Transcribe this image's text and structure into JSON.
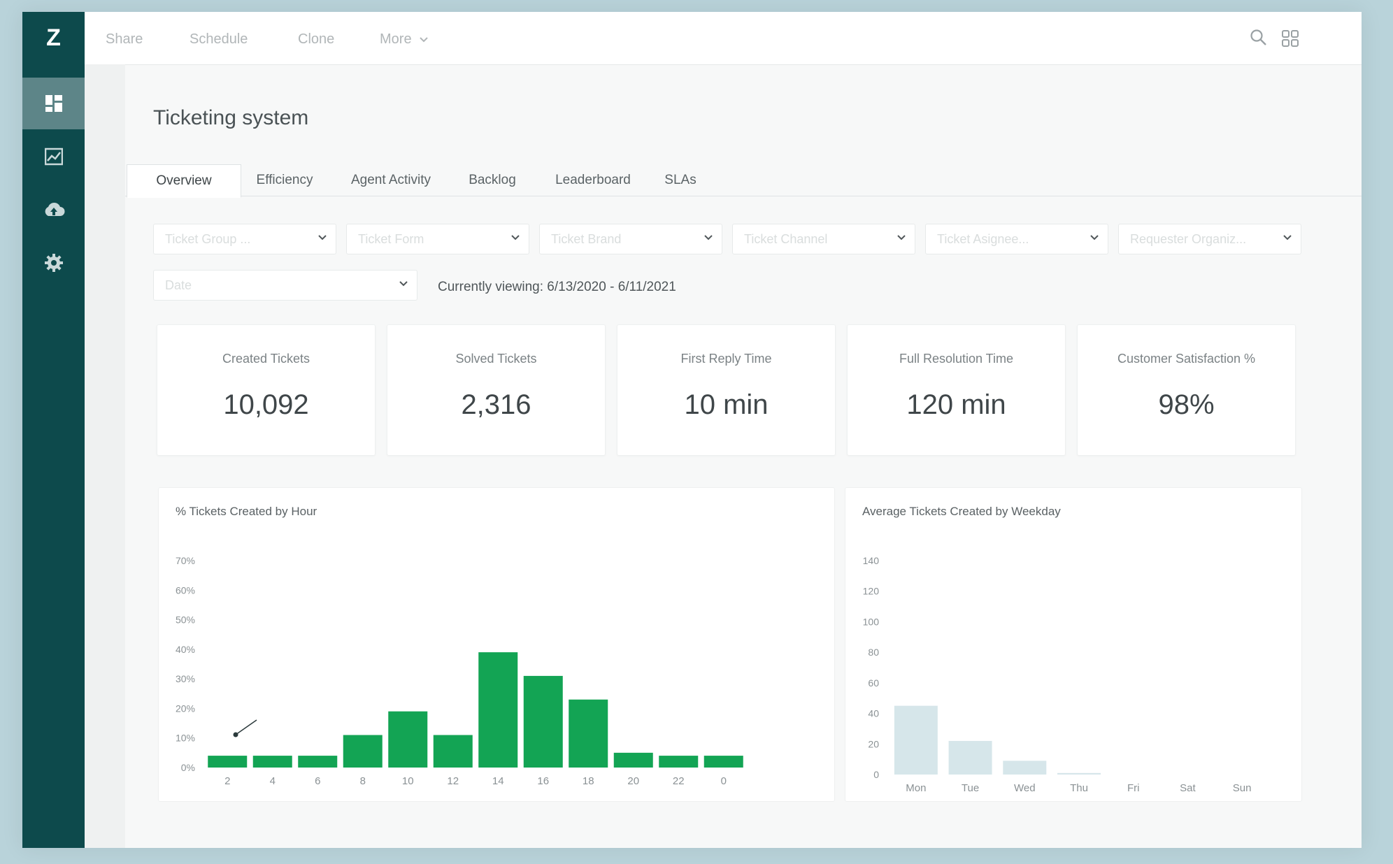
{
  "app": {
    "brand_mark": "Z"
  },
  "topbar": {
    "items": [
      "Share",
      "Schedule",
      "Clone",
      "More"
    ]
  },
  "page": {
    "title": "Ticketing system"
  },
  "tabs": [
    "Overview",
    "Efficiency",
    "Agent Activity",
    "Backlog",
    "Leaderboard",
    "SLAs"
  ],
  "filters": {
    "placeholders": [
      "Ticket Group ...",
      "Ticket Form",
      "Ticket Brand",
      "Ticket Channel",
      "Ticket Asignee...",
      "Requester Organiz..."
    ],
    "date_placeholder": "Date",
    "viewing": "Currently viewing: 6/13/2020 - 6/11/2021"
  },
  "kpis": [
    {
      "label": "Created Tickets",
      "value": "10,092"
    },
    {
      "label": "Solved Tickets",
      "value": "2,316"
    },
    {
      "label": "First Reply Time",
      "value": "10 min"
    },
    {
      "label": "Full Resolution Time",
      "value": "120 min"
    },
    {
      "label": "Customer Satisfaction %",
      "value": "98%"
    }
  ],
  "colors": {
    "sidebar": "#0d4a4c",
    "bar_green": "#13a454",
    "bar_faded": "#d6e6ea"
  },
  "chart_data": [
    {
      "type": "bar",
      "title": "% Tickets Created by Hour",
      "categories": [
        "2",
        "4",
        "6",
        "8",
        "10",
        "12",
        "14",
        "16",
        "18",
        "20",
        "22",
        "0"
      ],
      "values": [
        4,
        4,
        4,
        11,
        19,
        11,
        39,
        31,
        23,
        5,
        4,
        4
      ],
      "ylim": [
        0,
        70
      ],
      "ytick_labels": [
        "0%",
        "10%",
        "20%",
        "30%",
        "40%",
        "50%",
        "60%",
        "70%"
      ],
      "xlabel": "",
      "ylabel": ""
    },
    {
      "type": "bar",
      "title": "Average Tickets Created by Weekday",
      "categories": [
        "Mon",
        "Tue",
        "Wed",
        "Thu",
        "Fri",
        "Sat",
        "Sun"
      ],
      "values": [
        45,
        22,
        9,
        1,
        0,
        0,
        0
      ],
      "ylim": [
        0,
        140
      ],
      "ytick_labels": [
        "0",
        "20",
        "40",
        "60",
        "80",
        "100",
        "120",
        "140"
      ],
      "xlabel": "",
      "ylabel": ""
    }
  ]
}
